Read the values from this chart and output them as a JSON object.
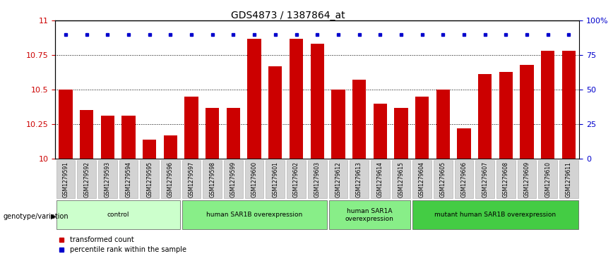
{
  "title": "GDS4873 / 1387864_at",
  "samples": [
    "GSM1279591",
    "GSM1279592",
    "GSM1279593",
    "GSM1279594",
    "GSM1279595",
    "GSM1279596",
    "GSM1279597",
    "GSM1279598",
    "GSM1279599",
    "GSM1279600",
    "GSM1279601",
    "GSM1279602",
    "GSM1279603",
    "GSM1279612",
    "GSM1279613",
    "GSM1279614",
    "GSM1279615",
    "GSM1279604",
    "GSM1279605",
    "GSM1279606",
    "GSM1279607",
    "GSM1279608",
    "GSM1279609",
    "GSM1279610",
    "GSM1279611"
  ],
  "bar_values": [
    10.5,
    10.35,
    10.31,
    10.31,
    10.14,
    10.17,
    10.45,
    10.37,
    10.37,
    10.87,
    10.67,
    10.87,
    10.83,
    10.5,
    10.57,
    10.4,
    10.37,
    10.45,
    10.5,
    10.22,
    10.61,
    10.63,
    10.68,
    10.78,
    10.78
  ],
  "percentile_values": [
    88,
    87,
    85,
    84,
    82,
    84,
    87,
    84,
    82,
    94,
    87,
    93,
    91,
    88,
    85,
    86,
    84,
    85,
    87,
    82,
    85,
    87,
    87,
    88,
    87
  ],
  "bar_color": "#cc0000",
  "dot_color": "#0000cc",
  "ylim": [
    10,
    11
  ],
  "yticks": [
    10,
    10.25,
    10.5,
    10.75,
    11
  ],
  "ytick_labels": [
    "10",
    "10.25",
    "10.5",
    "10.75",
    "11"
  ],
  "right_yticks": [
    0,
    25,
    50,
    75,
    100
  ],
  "right_ytick_labels": [
    "0",
    "25",
    "50",
    "75",
    "100%"
  ],
  "groups": [
    {
      "label": "control",
      "start": 0,
      "end": 5,
      "color": "#ccffcc"
    },
    {
      "label": "human SAR1B overexpression",
      "start": 6,
      "end": 12,
      "color": "#88ee88"
    },
    {
      "label": "human SAR1A\noverexpression",
      "start": 13,
      "end": 16,
      "color": "#88ee88"
    },
    {
      "label": "mutant human SAR1B overexpression",
      "start": 17,
      "end": 24,
      "color": "#44cc44"
    }
  ],
  "xlabel_genotype": "genotype/variation",
  "legend_bar_label": "transformed count",
  "legend_dot_label": "percentile rank within the sample",
  "background_color": "#ffffff",
  "plot_bg_color": "#ffffff",
  "tick_label_color_left": "#cc0000",
  "tick_label_color_right": "#0000cc",
  "xticklabel_bg": "#d3d3d3"
}
